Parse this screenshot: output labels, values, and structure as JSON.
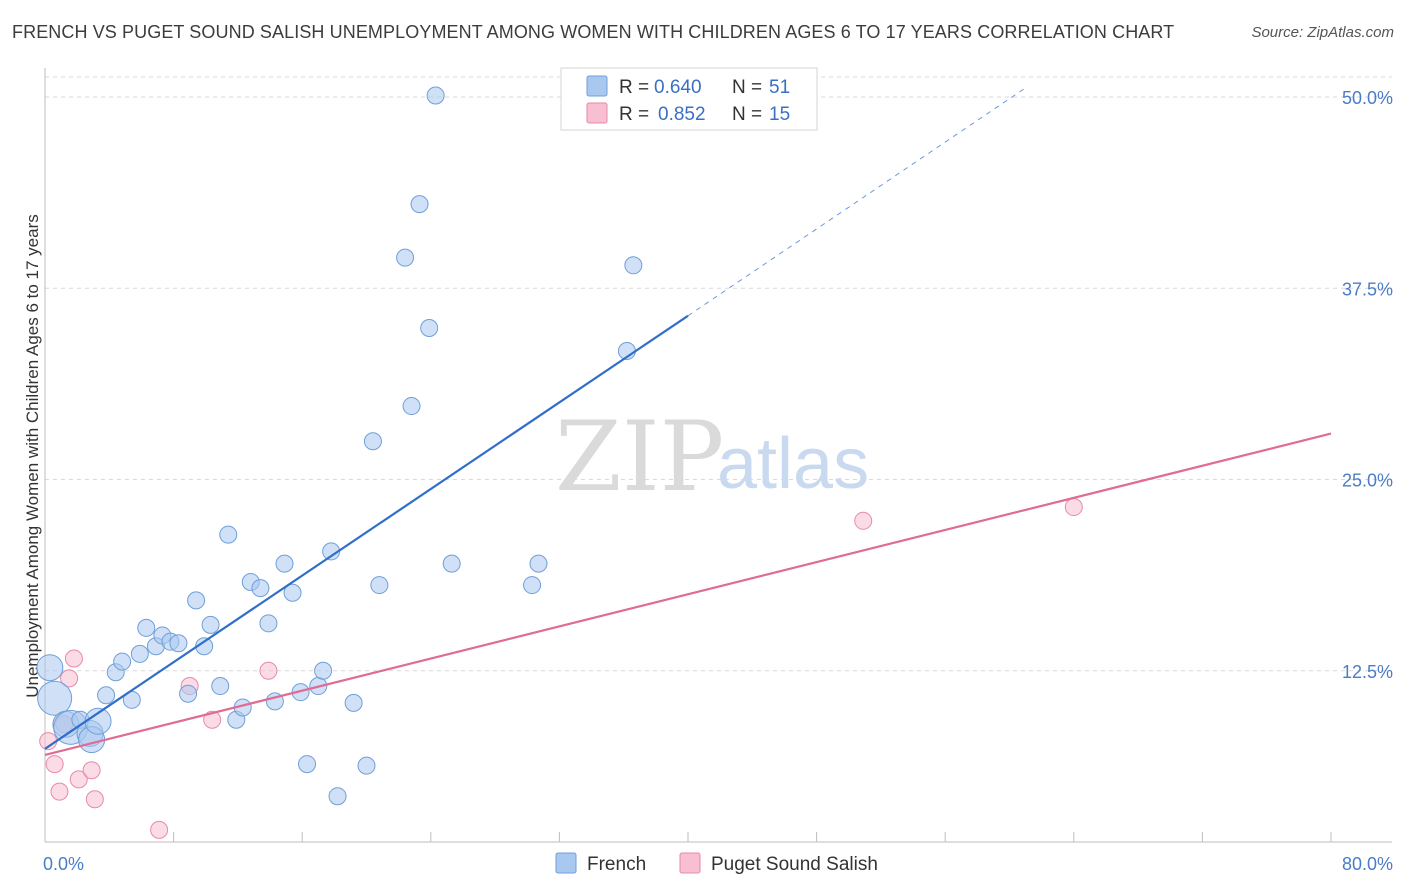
{
  "title": "FRENCH VS PUGET SOUND SALISH UNEMPLOYMENT AMONG WOMEN WITH CHILDREN AGES 6 TO 17 YEARS CORRELATION CHART",
  "source": "Source: ZipAtlas.com",
  "watermark": {
    "zip": "ZIP",
    "atlas": "atlas"
  },
  "colors": {
    "french_fill": "#a9c8f0",
    "french_stroke": "#6f9fd8",
    "french_line": "#2f6fca",
    "salish_fill": "#f7bfd1",
    "salish_stroke": "#e88aa8",
    "salish_line": "#e06b94",
    "grid": "#d9d9d9"
  },
  "legend": {
    "rows": [
      {
        "series": "French",
        "r_label": "R =",
        "r_value": "0.640",
        "n_label": "N =",
        "n_value": "51"
      },
      {
        "series": "Puget Sound Salish",
        "r_label": "R =",
        "r_value": "0.852",
        "n_label": "N =",
        "n_value": "15"
      }
    ]
  },
  "chart_data": {
    "type": "scatter",
    "title": "FRENCH VS PUGET SOUND SALISH UNEMPLOYMENT AMONG WOMEN WITH CHILDREN AGES 6 TO 17 YEARS CORRELATION CHART",
    "xlabel": "",
    "ylabel": "Unemployment Among Women with Children Ages 6 to 17 years",
    "xlim": [
      0,
      80
    ],
    "ylim": [
      0,
      50
    ],
    "x_tick_labels": [
      "0.0%",
      "80.0%"
    ],
    "y_ticks": [
      {
        "value": 12.5,
        "label": "12.5%"
      },
      {
        "value": 25.0,
        "label": "25.0%"
      },
      {
        "value": 37.5,
        "label": "37.5%"
      },
      {
        "value": 50.0,
        "label": "50.0%"
      }
    ],
    "series": [
      {
        "name": "French",
        "r": 0.64,
        "n": 51,
        "trend": {
          "x0": 0,
          "y0": 7.4,
          "x1": 40,
          "y1": 35.7,
          "dash_to_x": 61,
          "dash_to_y": 50.6
        },
        "points": [
          {
            "x": 0.3,
            "y": 12.7,
            "s": 2
          },
          {
            "x": 0.6,
            "y": 10.7,
            "s": 3
          },
          {
            "x": 1.3,
            "y": 9.0,
            "s": 2
          },
          {
            "x": 1.6,
            "y": 8.8,
            "s": 3
          },
          {
            "x": 2.2,
            "y": 9.3,
            "s": 1
          },
          {
            "x": 2.8,
            "y": 8.4,
            "s": 2
          },
          {
            "x": 2.9,
            "y": 8.0,
            "s": 2
          },
          {
            "x": 3.3,
            "y": 9.2,
            "s": 2
          },
          {
            "x": 3.8,
            "y": 10.9,
            "s": 1
          },
          {
            "x": 4.4,
            "y": 12.4,
            "s": 1
          },
          {
            "x": 4.8,
            "y": 13.1,
            "s": 1
          },
          {
            "x": 5.4,
            "y": 10.6,
            "s": 1
          },
          {
            "x": 5.9,
            "y": 13.6,
            "s": 1
          },
          {
            "x": 6.3,
            "y": 15.3,
            "s": 1
          },
          {
            "x": 6.9,
            "y": 14.1,
            "s": 1
          },
          {
            "x": 7.3,
            "y": 14.8,
            "s": 1
          },
          {
            "x": 7.8,
            "y": 14.4,
            "s": 1
          },
          {
            "x": 8.3,
            "y": 14.3,
            "s": 1
          },
          {
            "x": 8.9,
            "y": 11.0,
            "s": 1
          },
          {
            "x": 9.4,
            "y": 17.1,
            "s": 1
          },
          {
            "x": 9.9,
            "y": 14.1,
            "s": 1
          },
          {
            "x": 10.3,
            "y": 15.5,
            "s": 1
          },
          {
            "x": 10.9,
            "y": 11.5,
            "s": 1
          },
          {
            "x": 11.4,
            "y": 21.4,
            "s": 1
          },
          {
            "x": 11.9,
            "y": 9.3,
            "s": 1
          },
          {
            "x": 12.3,
            "y": 10.1,
            "s": 1
          },
          {
            "x": 12.8,
            "y": 18.3,
            "s": 1
          },
          {
            "x": 13.4,
            "y": 17.9,
            "s": 1
          },
          {
            "x": 13.9,
            "y": 15.6,
            "s": 1
          },
          {
            "x": 14.3,
            "y": 10.5,
            "s": 1
          },
          {
            "x": 14.9,
            "y": 19.5,
            "s": 1
          },
          {
            "x": 15.4,
            "y": 17.6,
            "s": 1
          },
          {
            "x": 15.9,
            "y": 11.1,
            "s": 1
          },
          {
            "x": 16.3,
            "y": 6.4,
            "s": 1
          },
          {
            "x": 17.0,
            "y": 11.5,
            "s": 1
          },
          {
            "x": 17.3,
            "y": 12.5,
            "s": 1
          },
          {
            "x": 17.8,
            "y": 20.3,
            "s": 1
          },
          {
            "x": 18.2,
            "y": 4.3,
            "s": 1
          },
          {
            "x": 19.2,
            "y": 10.4,
            "s": 1
          },
          {
            "x": 20.0,
            "y": 6.3,
            "s": 1
          },
          {
            "x": 20.4,
            "y": 27.5,
            "s": 1
          },
          {
            "x": 20.8,
            "y": 18.1,
            "s": 1
          },
          {
            "x": 22.4,
            "y": 39.5,
            "s": 1
          },
          {
            "x": 22.8,
            "y": 29.8,
            "s": 1
          },
          {
            "x": 23.3,
            "y": 43.0,
            "s": 1
          },
          {
            "x": 23.9,
            "y": 34.9,
            "s": 1
          },
          {
            "x": 24.3,
            "y": 50.1,
            "s": 1
          },
          {
            "x": 25.3,
            "y": 19.5,
            "s": 1
          },
          {
            "x": 30.3,
            "y": 18.1,
            "s": 1
          },
          {
            "x": 30.7,
            "y": 19.5,
            "s": 1
          },
          {
            "x": 36.2,
            "y": 33.4,
            "s": 1
          },
          {
            "x": 36.6,
            "y": 39.0,
            "s": 1
          }
        ]
      },
      {
        "name": "Puget Sound Salish",
        "r": 0.852,
        "n": 15,
        "trend": {
          "x0": 0,
          "y0": 7.0,
          "x1": 80,
          "y1": 28.0
        },
        "points": [
          {
            "x": 0.2,
            "y": 7.9,
            "s": 1
          },
          {
            "x": 0.6,
            "y": 6.4,
            "s": 1
          },
          {
            "x": 0.9,
            "y": 4.6,
            "s": 1
          },
          {
            "x": 1.2,
            "y": 9.0,
            "s": 1
          },
          {
            "x": 1.5,
            "y": 12.0,
            "s": 1
          },
          {
            "x": 1.8,
            "y": 13.3,
            "s": 1
          },
          {
            "x": 2.1,
            "y": 5.4,
            "s": 1
          },
          {
            "x": 2.9,
            "y": 6.0,
            "s": 1
          },
          {
            "x": 3.1,
            "y": 4.1,
            "s": 1
          },
          {
            "x": 7.1,
            "y": 2.1,
            "s": 1
          },
          {
            "x": 9.0,
            "y": 11.5,
            "s": 1
          },
          {
            "x": 10.4,
            "y": 9.3,
            "s": 1
          },
          {
            "x": 13.9,
            "y": 12.5,
            "s": 1
          },
          {
            "x": 50.9,
            "y": 22.3,
            "s": 1
          },
          {
            "x": 64.0,
            "y": 23.2,
            "s": 1
          }
        ]
      }
    ]
  }
}
